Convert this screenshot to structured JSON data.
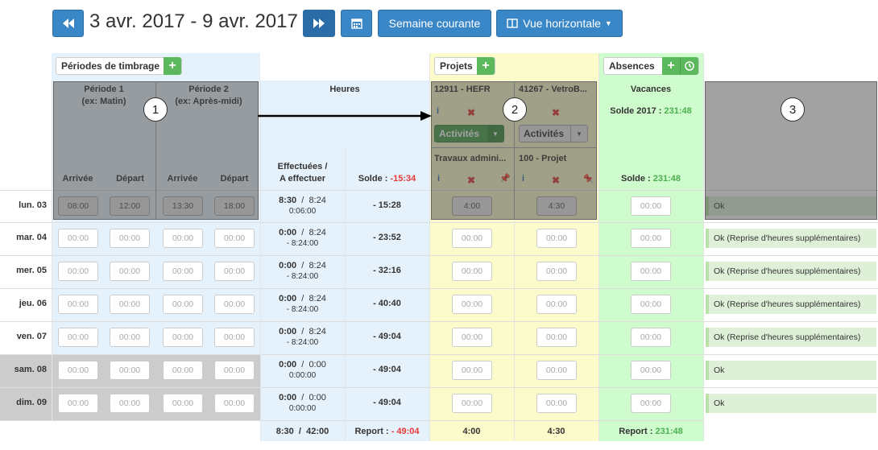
{
  "toolbar": {
    "prev_icon": "double-left-icon",
    "date_range": "3 avr. 2017 - 9 avr. 2017",
    "next_icon": "double-right-icon",
    "calendar_icon": "calendar-icon",
    "current_week": "Semaine courante",
    "horizontal_view": "Vue horizontale"
  },
  "sections": {
    "periods": "Périodes de timbrage",
    "projects": "Projets",
    "absences": "Absences"
  },
  "periods": [
    {
      "title": "Période 1",
      "sub": "(ex: Matin)",
      "in": "Arrivée",
      "out": "Départ"
    },
    {
      "title": "Période 2",
      "sub": "(ex: Après-midi)",
      "in": "Arrivée",
      "out": "Départ"
    }
  ],
  "hours": {
    "title": "Heures",
    "done_label": "Effectuées /",
    "todo_label": "A effectuer",
    "balance_label": "Solde : ",
    "balance_value": "-15:34"
  },
  "projects": [
    {
      "name": "12911 - HEFR",
      "activities": "Activités",
      "task": "Travaux admini..."
    },
    {
      "name": "41267 - VetroB...",
      "activities": "Activités",
      "task": "100 - Projet"
    }
  ],
  "absence": {
    "title": "Vacances",
    "balance_2017_label": "Solde 2017 : ",
    "balance_2017_value": "231:48",
    "balance_label": "Solde : ",
    "balance_value": "231:48"
  },
  "callouts": [
    "1",
    "2",
    "3"
  ],
  "placeholder": "00:00",
  "rows": [
    {
      "day": "lun. 03",
      "p1in": "08:00",
      "p1out": "12:00",
      "p2in": "13:30",
      "p2out": "18:00",
      "done": "8:30",
      "todo": "8:24",
      "diff": "0:06:00",
      "solde": "- 15:28",
      "proj1": "4:00",
      "proj2": "4:30",
      "abs": "00:00",
      "status": "Ok",
      "weekend": false
    },
    {
      "day": "mar. 04",
      "p1in": "00:00",
      "p1out": "00:00",
      "p2in": "00:00",
      "p2out": "00:00",
      "done": "0:00",
      "todo": "8:24",
      "diff": "- 8:24:00",
      "solde": "- 23:52",
      "proj1": "00:00",
      "proj2": "00:00",
      "abs": "00:00",
      "status": "Ok (Reprise d'heures supplémentaires)",
      "weekend": false
    },
    {
      "day": "mer. 05",
      "p1in": "00:00",
      "p1out": "00:00",
      "p2in": "00:00",
      "p2out": "00:00",
      "done": "0:00",
      "todo": "8:24",
      "diff": "- 8:24:00",
      "solde": "- 32:16",
      "proj1": "00:00",
      "proj2": "00:00",
      "abs": "00:00",
      "status": "Ok (Reprise d'heures supplémentaires)",
      "weekend": false
    },
    {
      "day": "jeu. 06",
      "p1in": "00:00",
      "p1out": "00:00",
      "p2in": "00:00",
      "p2out": "00:00",
      "done": "0:00",
      "todo": "8:24",
      "diff": "- 8:24:00",
      "solde": "- 40:40",
      "proj1": "00:00",
      "proj2": "00:00",
      "abs": "00:00",
      "status": "Ok (Reprise d'heures supplémentaires)",
      "weekend": false
    },
    {
      "day": "ven. 07",
      "p1in": "00:00",
      "p1out": "00:00",
      "p2in": "00:00",
      "p2out": "00:00",
      "done": "0:00",
      "todo": "8:24",
      "diff": "- 8:24:00",
      "solde": "- 49:04",
      "proj1": "00:00",
      "proj2": "00:00",
      "abs": "00:00",
      "status": "Ok (Reprise d'heures supplémentaires)",
      "weekend": false
    },
    {
      "day": "sam. 08",
      "p1in": "00:00",
      "p1out": "00:00",
      "p2in": "00:00",
      "p2out": "00:00",
      "done": "0:00",
      "todo": "0:00",
      "diff": "0:00:00",
      "solde": "- 49:04",
      "proj1": "00:00",
      "proj2": "00:00",
      "abs": "00:00",
      "status": "Ok",
      "weekend": true
    },
    {
      "day": "dim. 09",
      "p1in": "00:00",
      "p1out": "00:00",
      "p2in": "00:00",
      "p2out": "00:00",
      "done": "0:00",
      "todo": "0:00",
      "diff": "0:00:00",
      "solde": "- 49:04",
      "proj1": "00:00",
      "proj2": "00:00",
      "abs": "00:00",
      "status": "Ok",
      "weekend": true
    }
  ],
  "footer": {
    "total_done": "8:30",
    "total_todo": "42:00",
    "report_label": "Report : ",
    "report_value": "- 49:04",
    "proj1": "4:00",
    "proj2": "4:30",
    "abs_report_label": "Report : ",
    "abs_report_value": "231:48"
  },
  "colors": {
    "primary": "#3a87c8",
    "success": "#5cb85c",
    "periods_bg": "#e6f2fb",
    "projects_bg": "#fbfbcc",
    "absences_bg": "#cffccc",
    "status_bg": "#dff0d8",
    "negative": "#e53935",
    "positive": "#4caf50"
  }
}
